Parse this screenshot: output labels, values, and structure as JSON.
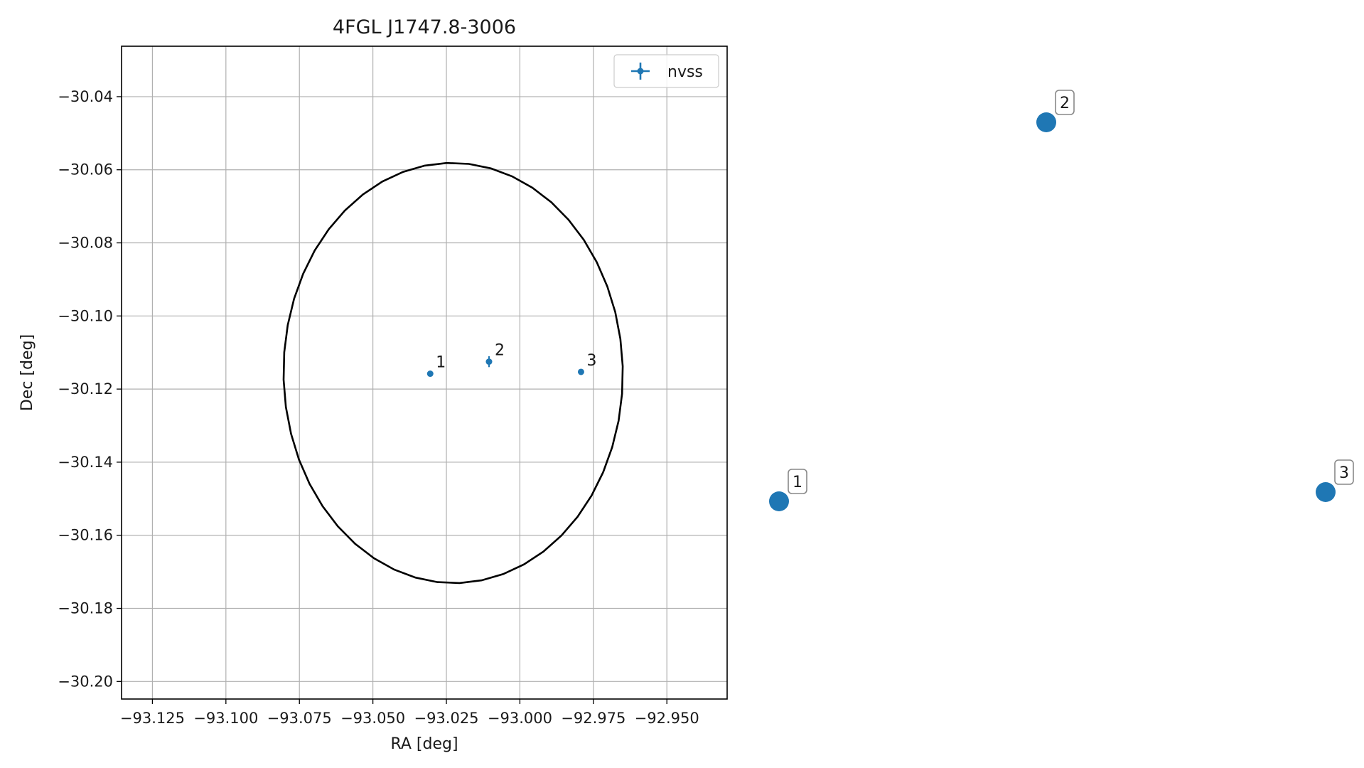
{
  "chart_data": {
    "type": "scatter",
    "title": "4FGL J1747.8-3006",
    "xlabel": "RA [deg]",
    "ylabel": "Dec [deg]",
    "xlim": [
      -93.1355,
      -92.9295
    ],
    "ylim": [
      -30.2048,
      -30.0262
    ],
    "x_ticks": [
      -93.125,
      -93.1,
      -93.075,
      -93.05,
      -93.025,
      -93.0,
      -92.975,
      -92.95
    ],
    "x_tick_labels": [
      "−93.125",
      "−93.100",
      "−93.075",
      "−93.050",
      "−93.025",
      "−93.000",
      "−92.975",
      "−92.950"
    ],
    "y_ticks": [
      -30.04,
      -30.06,
      -30.08,
      -30.1,
      -30.12,
      -30.14,
      -30.16,
      -30.18,
      -30.2
    ],
    "y_tick_labels": [
      "−30.04",
      "−30.06",
      "−30.08",
      "−30.10",
      "−30.12",
      "−30.14",
      "−30.16",
      "−30.18",
      "−30.20"
    ],
    "grid": true,
    "legend": {
      "placement": "top-right",
      "entries": [
        "nvss"
      ]
    },
    "series": [
      {
        "name": "nvss",
        "color": "#1f77b4",
        "points": [
          {
            "label": "1",
            "x": -93.0305,
            "y": -30.1158,
            "yerr": 0.0005
          },
          {
            "label": "2",
            "x": -93.0105,
            "y": -30.1125,
            "yerr": 0.0015
          },
          {
            "label": "3",
            "x": -92.9792,
            "y": -30.1153,
            "yerr": 0.0004
          }
        ]
      }
    ],
    "ellipse": {
      "color": "#000000",
      "center_x": -93.0227,
      "center_y": -30.1156,
      "semi_axis_x": 0.0578,
      "semi_axis_y": 0.0574,
      "angle_deg": -28
    }
  },
  "inset_markers": {
    "color": "#1f77b4",
    "items": [
      {
        "label": "1"
      },
      {
        "label": "2"
      },
      {
        "label": "3"
      }
    ]
  }
}
